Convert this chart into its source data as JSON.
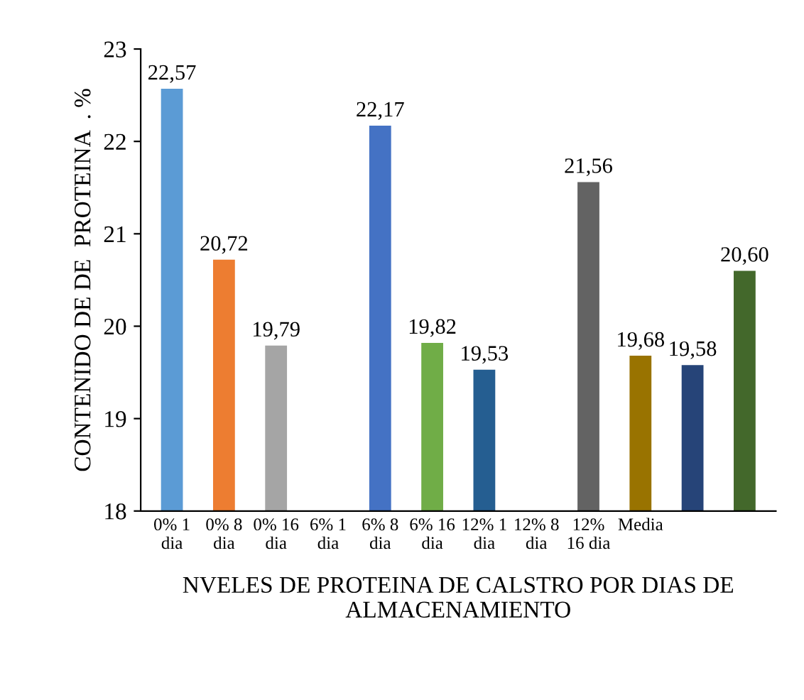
{
  "chart_data": {
    "type": "bar",
    "xlabel": "NVELES DE PROTEINA DE CALSTRO POR DIAS DE\nALMACENAMIENTO",
    "ylabel": "CONTENIDO DE DE  PROTEINA  . %",
    "categories": [
      "0% 1\ndia",
      "0% 8\ndia",
      "0% 16\ndia",
      "6% 1\ndia",
      "6% 8\ndia",
      "6% 16\ndia",
      "12% 1\ndia",
      "12% 8\ndia",
      "12%\n16 dia",
      "Media",
      null,
      null
    ],
    "values": [
      22.57,
      20.72,
      19.79,
      null,
      22.17,
      19.82,
      19.53,
      null,
      21.56,
      19.68,
      19.58,
      20.6
    ],
    "colors": [
      "#5b9bd5",
      "#ed7d31",
      "#a5a5a5",
      "#5b9bd5",
      "#4472c4",
      "#70ad47",
      "#255e91",
      "#5b9bd5",
      "#636363",
      "#997300",
      "#264478",
      "#43682b"
    ],
    "value_labels": [
      "22,57",
      "20,72",
      "19,79",
      null,
      "22,17",
      "19,82",
      "19,53",
      null,
      "21,56",
      "19,68",
      "19,58",
      "20,60"
    ],
    "ylim": [
      18,
      23
    ],
    "yticks": [
      18,
      19,
      20,
      21,
      22,
      23
    ],
    "grid": false,
    "legend": false
  }
}
